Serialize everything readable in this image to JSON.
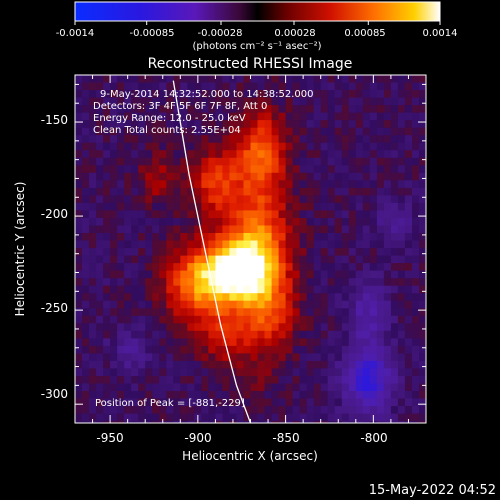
{
  "colorbar": {
    "tick_labels": [
      "-0.0014",
      "-0.00085",
      "-0.00028",
      "0.00028",
      "0.00085",
      "0.0014"
    ],
    "tick_values": [
      -0.0014,
      -0.00085,
      -0.00028,
      0.00028,
      0.00085,
      0.0014
    ],
    "range": [
      -0.0014,
      0.0014
    ],
    "unit_label": "(photons cm⁻² s⁻¹ asec⁻²)"
  },
  "annotations": {
    "time_range": "9-May-2014 14:32:52.000 to 14:38:52.000",
    "detectors": "Detectors: 3F 4F 5F 6F 7F 8F, Att 0",
    "energy_range": "Energy Range: 12.0 - 25.0 keV",
    "clean_counts": "Clean   Total counts: 2.55E+04",
    "peak_position": "Position of Peak = [-881,-229]"
  },
  "footer": {
    "timestamp": "15-May-2022 04:52"
  },
  "colors": {
    "background": "#000000",
    "text": "#ffffff",
    "limb": "#ffffff"
  },
  "chart_data": {
    "type": "heatmap",
    "title": "Reconstructed RHESSI Image",
    "xlabel": "Heliocentric X (arcsec)",
    "ylabel": "Heliocentric Y (arcsec)",
    "xlim": [
      -970,
      -770
    ],
    "ylim": [
      -310,
      -125
    ],
    "x_ticks": [
      -950,
      -900,
      -850,
      -800
    ],
    "x_tick_labels": [
      "-950",
      "-900",
      "-850",
      "-800"
    ],
    "y_ticks": [
      -150,
      -200,
      -250,
      -300
    ],
    "y_tick_labels": [
      "-150",
      "-200",
      "-250",
      "-300"
    ],
    "colormap": "rainbow-to-heat (blue-purple negative, red-orange-yellow-white positive)",
    "peak": {
      "x": -881,
      "y": -229,
      "value": 0.0014
    },
    "sources": [
      {
        "x": -881,
        "y": -229,
        "sx": 14,
        "sy": 12,
        "amp": 1.0
      },
      {
        "x": -868,
        "y": -212,
        "sx": 13,
        "sy": 18,
        "amp": 0.6
      },
      {
        "x": -866,
        "y": -165,
        "sx": 10,
        "sy": 16,
        "amp": 0.55
      },
      {
        "x": -892,
        "y": -180,
        "sx": 10,
        "sy": 12,
        "amp": 0.45
      },
      {
        "x": -905,
        "y": -235,
        "sx": 12,
        "sy": 14,
        "amp": 0.5
      },
      {
        "x": -860,
        "y": -250,
        "sx": 10,
        "sy": 14,
        "amp": 0.4
      },
      {
        "x": -885,
        "y": -262,
        "sx": 12,
        "sy": 10,
        "amp": 0.35
      },
      {
        "x": -925,
        "y": -178,
        "sx": 8,
        "sy": 10,
        "amp": 0.22
      },
      {
        "x": -870,
        "y": -285,
        "sx": 10,
        "sy": 8,
        "amp": 0.12
      }
    ],
    "negatives": [
      {
        "x": -805,
        "y": -285,
        "sx": 10,
        "sy": 12,
        "amp": 0.55
      },
      {
        "x": -805,
        "y": -250,
        "sx": 8,
        "sy": 12,
        "amp": 0.3
      },
      {
        "x": -790,
        "y": -200,
        "sx": 8,
        "sy": 8,
        "amp": 0.22
      },
      {
        "x": -940,
        "y": -270,
        "sx": 8,
        "sy": 8,
        "amp": 0.2
      }
    ],
    "limb_curve": {
      "points": [
        [
          -914,
          -128
        ],
        [
          -905,
          -178
        ],
        [
          -896,
          -218
        ],
        [
          -887,
          -258
        ],
        [
          -878,
          -290
        ],
        [
          -870,
          -310
        ]
      ]
    }
  }
}
